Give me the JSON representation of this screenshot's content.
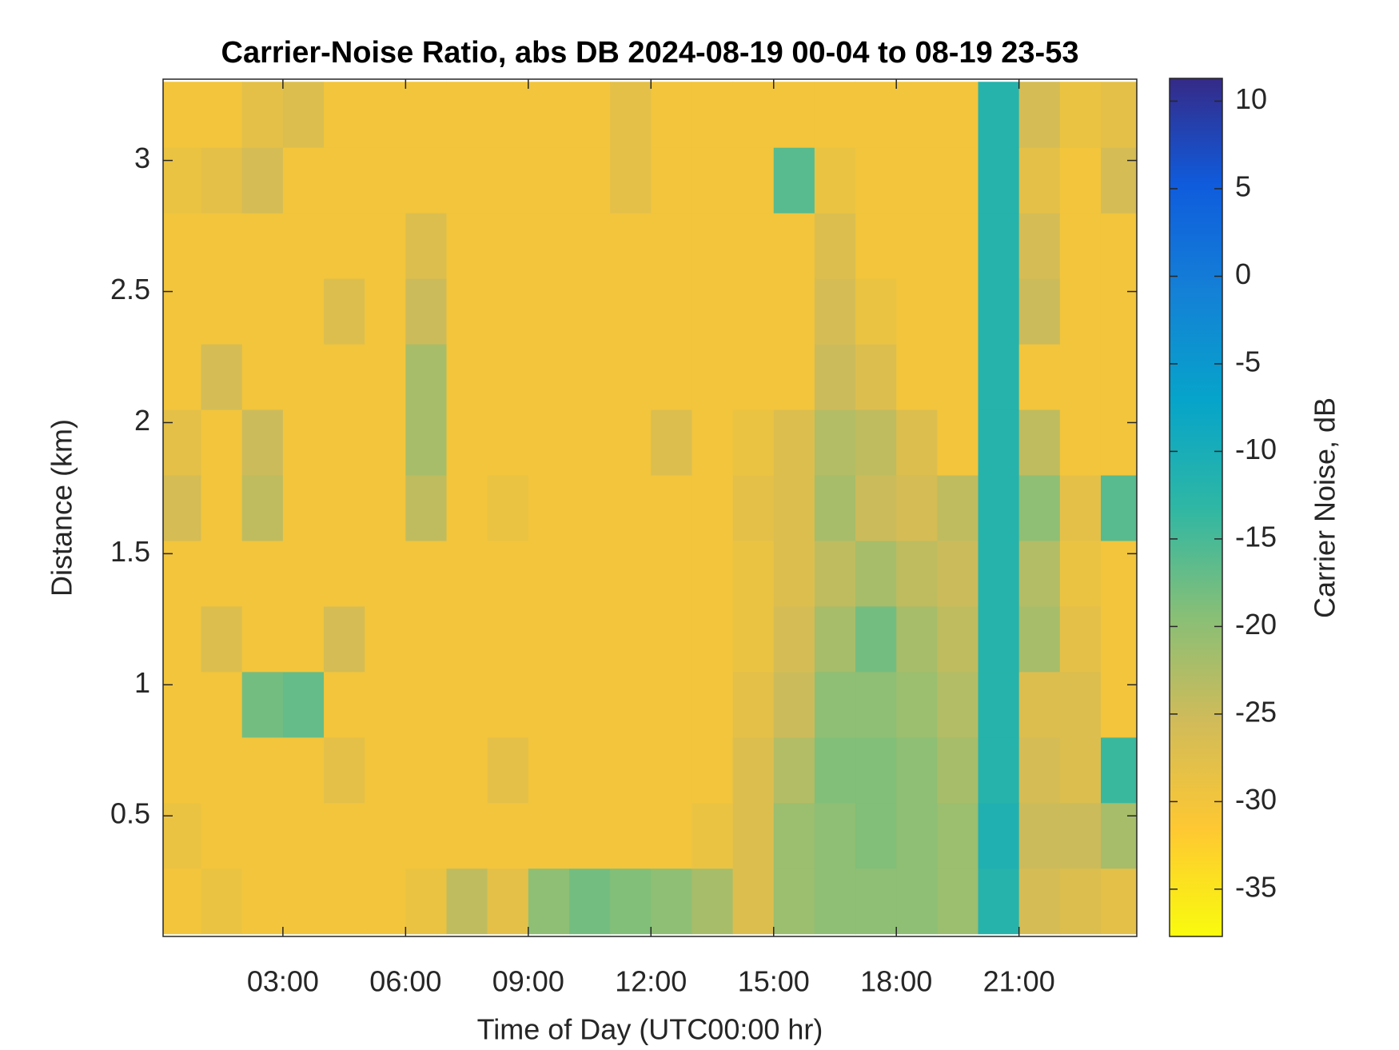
{
  "chart_data": {
    "type": "heatmap",
    "title": "Carrier-Noise Ratio, abs DB 2024-08-19 00-04 to 08-19 23-53",
    "xlabel": "Time of Day (UTC00:00 hr)",
    "ylabel": "Distance (km)",
    "colorbar_label": "Carrier Noise, dB",
    "x": [
      0.5,
      1.5,
      2.5,
      3.5,
      4.5,
      5.5,
      6.5,
      7.5,
      8.5,
      9.5,
      10.5,
      11.5,
      12.5,
      13.5,
      14.5,
      15.5,
      16.5,
      17.5,
      18.5,
      19.5,
      20.5,
      21.5,
      22.5,
      23.5
    ],
    "y": [
      0.175,
      0.425,
      0.675,
      0.925,
      1.175,
      1.425,
      1.675,
      1.925,
      2.175,
      2.425,
      2.675,
      2.925,
      3.175
    ],
    "z": [
      [
        -30,
        -29,
        -30,
        -30,
        -30,
        -30,
        -29,
        -24,
        -28,
        -20,
        -18,
        -19,
        -20,
        -22,
        -27,
        -21,
        -20,
        -20,
        -20,
        -21,
        -12,
        -26,
        -27,
        -28
      ],
      [
        -29,
        -30,
        -30,
        -30,
        -30,
        -30,
        -30,
        -30,
        -30,
        -30,
        -30,
        -30,
        -30,
        -29,
        -27,
        -21,
        -20,
        -19,
        -20,
        -21,
        -11,
        -25,
        -25,
        -22
      ],
      [
        -30,
        -30,
        -30,
        -30,
        -28,
        -30,
        -30,
        -30,
        -28,
        -30,
        -30,
        -30,
        -30,
        -30,
        -27,
        -23,
        -19,
        -19,
        -20,
        -22,
        -12,
        -26,
        -27,
        -14
      ],
      [
        -30,
        -30,
        -18,
        -17,
        -30,
        -30,
        -30,
        -30,
        -30,
        -30,
        -30,
        -30,
        -30,
        -30,
        -28,
        -25,
        -20,
        -20,
        -21,
        -23,
        -12,
        -27,
        -27,
        -30
      ],
      [
        -30,
        -27,
        -30,
        -30,
        -26,
        -30,
        -30,
        -30,
        -30,
        -30,
        -30,
        -30,
        -30,
        -30,
        -29,
        -26,
        -22,
        -18,
        -22,
        -24,
        -12,
        -22,
        -28,
        -30
      ],
      [
        -30,
        -30,
        -30,
        -30,
        -30,
        -30,
        -30,
        -30,
        -30,
        -30,
        -30,
        -30,
        -30,
        -30,
        -29,
        -27,
        -24,
        -22,
        -24,
        -25,
        -12,
        -23,
        -29,
        -30
      ],
      [
        -26,
        -30,
        -24,
        -30,
        -30,
        -30,
        -24,
        -30,
        -29,
        -30,
        -30,
        -30,
        -30,
        -30,
        -28,
        -27,
        -22,
        -25,
        -26,
        -24,
        -12,
        -20,
        -28,
        -16
      ],
      [
        -28,
        -30,
        -25,
        -30,
        -30,
        -30,
        -22,
        -30,
        -30,
        -30,
        -30,
        -30,
        -27,
        -30,
        -29,
        -27,
        -23,
        -24,
        -27,
        -30,
        -12,
        -24,
        -30,
        -30
      ],
      [
        -30,
        -26,
        -30,
        -30,
        -30,
        -30,
        -22,
        -30,
        -30,
        -30,
        -30,
        -30,
        -30,
        -30,
        -30,
        -30,
        -25,
        -27,
        -30,
        -30,
        -12,
        -30,
        -30,
        -30
      ],
      [
        -30,
        -30,
        -30,
        -30,
        -27,
        -30,
        -25,
        -30,
        -30,
        -30,
        -30,
        -30,
        -30,
        -30,
        -30,
        -30,
        -26,
        -29,
        -30,
        -30,
        -12,
        -25,
        -30,
        -30
      ],
      [
        -30,
        -30,
        -30,
        -30,
        -30,
        -30,
        -27,
        -30,
        -30,
        -30,
        -30,
        -30,
        -30,
        -30,
        -30,
        -30,
        -27,
        -30,
        -30,
        -30,
        -12,
        -26,
        -30,
        -30
      ],
      [
        -29,
        -28,
        -26,
        -30,
        -30,
        -30,
        -30,
        -30,
        -30,
        -30,
        -30,
        -28,
        -30,
        -30,
        -30,
        -16,
        -29,
        -30,
        -30,
        -30,
        -12,
        -28,
        -30,
        -26
      ],
      [
        -30,
        -30,
        -28,
        -27,
        -30,
        -30,
        -30,
        -30,
        -30,
        -30,
        -30,
        -28,
        -30,
        -30,
        -30,
        -30,
        -30,
        -30,
        -30,
        -30,
        -12,
        -26,
        -29,
        -28
      ]
    ],
    "xlim": [
      0.07,
      23.88
    ],
    "ylim": [
      0.04,
      3.31
    ],
    "xticks": [
      {
        "value": 3,
        "label": "03:00"
      },
      {
        "value": 6,
        "label": "06:00"
      },
      {
        "value": 9,
        "label": "09:00"
      },
      {
        "value": 12,
        "label": "12:00"
      },
      {
        "value": 15,
        "label": "15:00"
      },
      {
        "value": 18,
        "label": "18:00"
      },
      {
        "value": 21,
        "label": "21:00"
      }
    ],
    "yticks": [
      0.5,
      1,
      1.5,
      2,
      2.5,
      3
    ],
    "clim": [
      -37.7,
      11.3
    ],
    "cticks": [
      -35,
      -30,
      -25,
      -20,
      -15,
      -10,
      -5,
      0,
      5,
      10
    ],
    "colormap": [
      "#f9fb0e",
      "#fec832",
      "#d1bb59",
      "#87bf77",
      "#2eb7a4",
      "#06a4ca",
      "#1481d6",
      "#0f5cdd",
      "#352a87"
    ]
  }
}
